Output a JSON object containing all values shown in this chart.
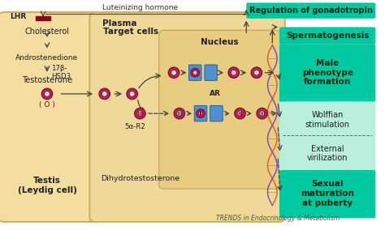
{
  "bg_color": "#f5e0b0",
  "bg_outer": "#ffffff",
  "teal_color": "#00c8a0",
  "cell_border": "#c8b060",
  "hormone_red": "#c03060",
  "arrow_color": "#404040",
  "title": "TRENDS in Endocrinology & Metabolism",
  "testis_bg": "#f5dda0",
  "target_bg": "#f0d898",
  "nucleus_bg": "#e8cc80",
  "texts": {
    "LHR": "LHR",
    "lh": "Luteinizing hormone",
    "reg": "Regulation of gonadotropin",
    "plasma": "Plasma",
    "target": "Target cells",
    "nucleus": "Nucleus",
    "cholesterol": "Cholesterol",
    "androstenedione": "Androstenedione",
    "hsd": "17β-\nHSD3",
    "testosterone": "Testosterone",
    "t_symbol": "( O )",
    "testis": "Testis\n(Leydig cell)",
    "ar": "AR",
    "five_alpha": "5α-R2",
    "dht": "Dihydrotestosterone",
    "sperm": "Spermatogenesis",
    "male": "Male\nphenotype\nformation",
    "wolffian": "Wolffian\nstimulation",
    "external": "External\nvirilization",
    "sexual": "Sexual\nmaturation\nat puberty"
  }
}
